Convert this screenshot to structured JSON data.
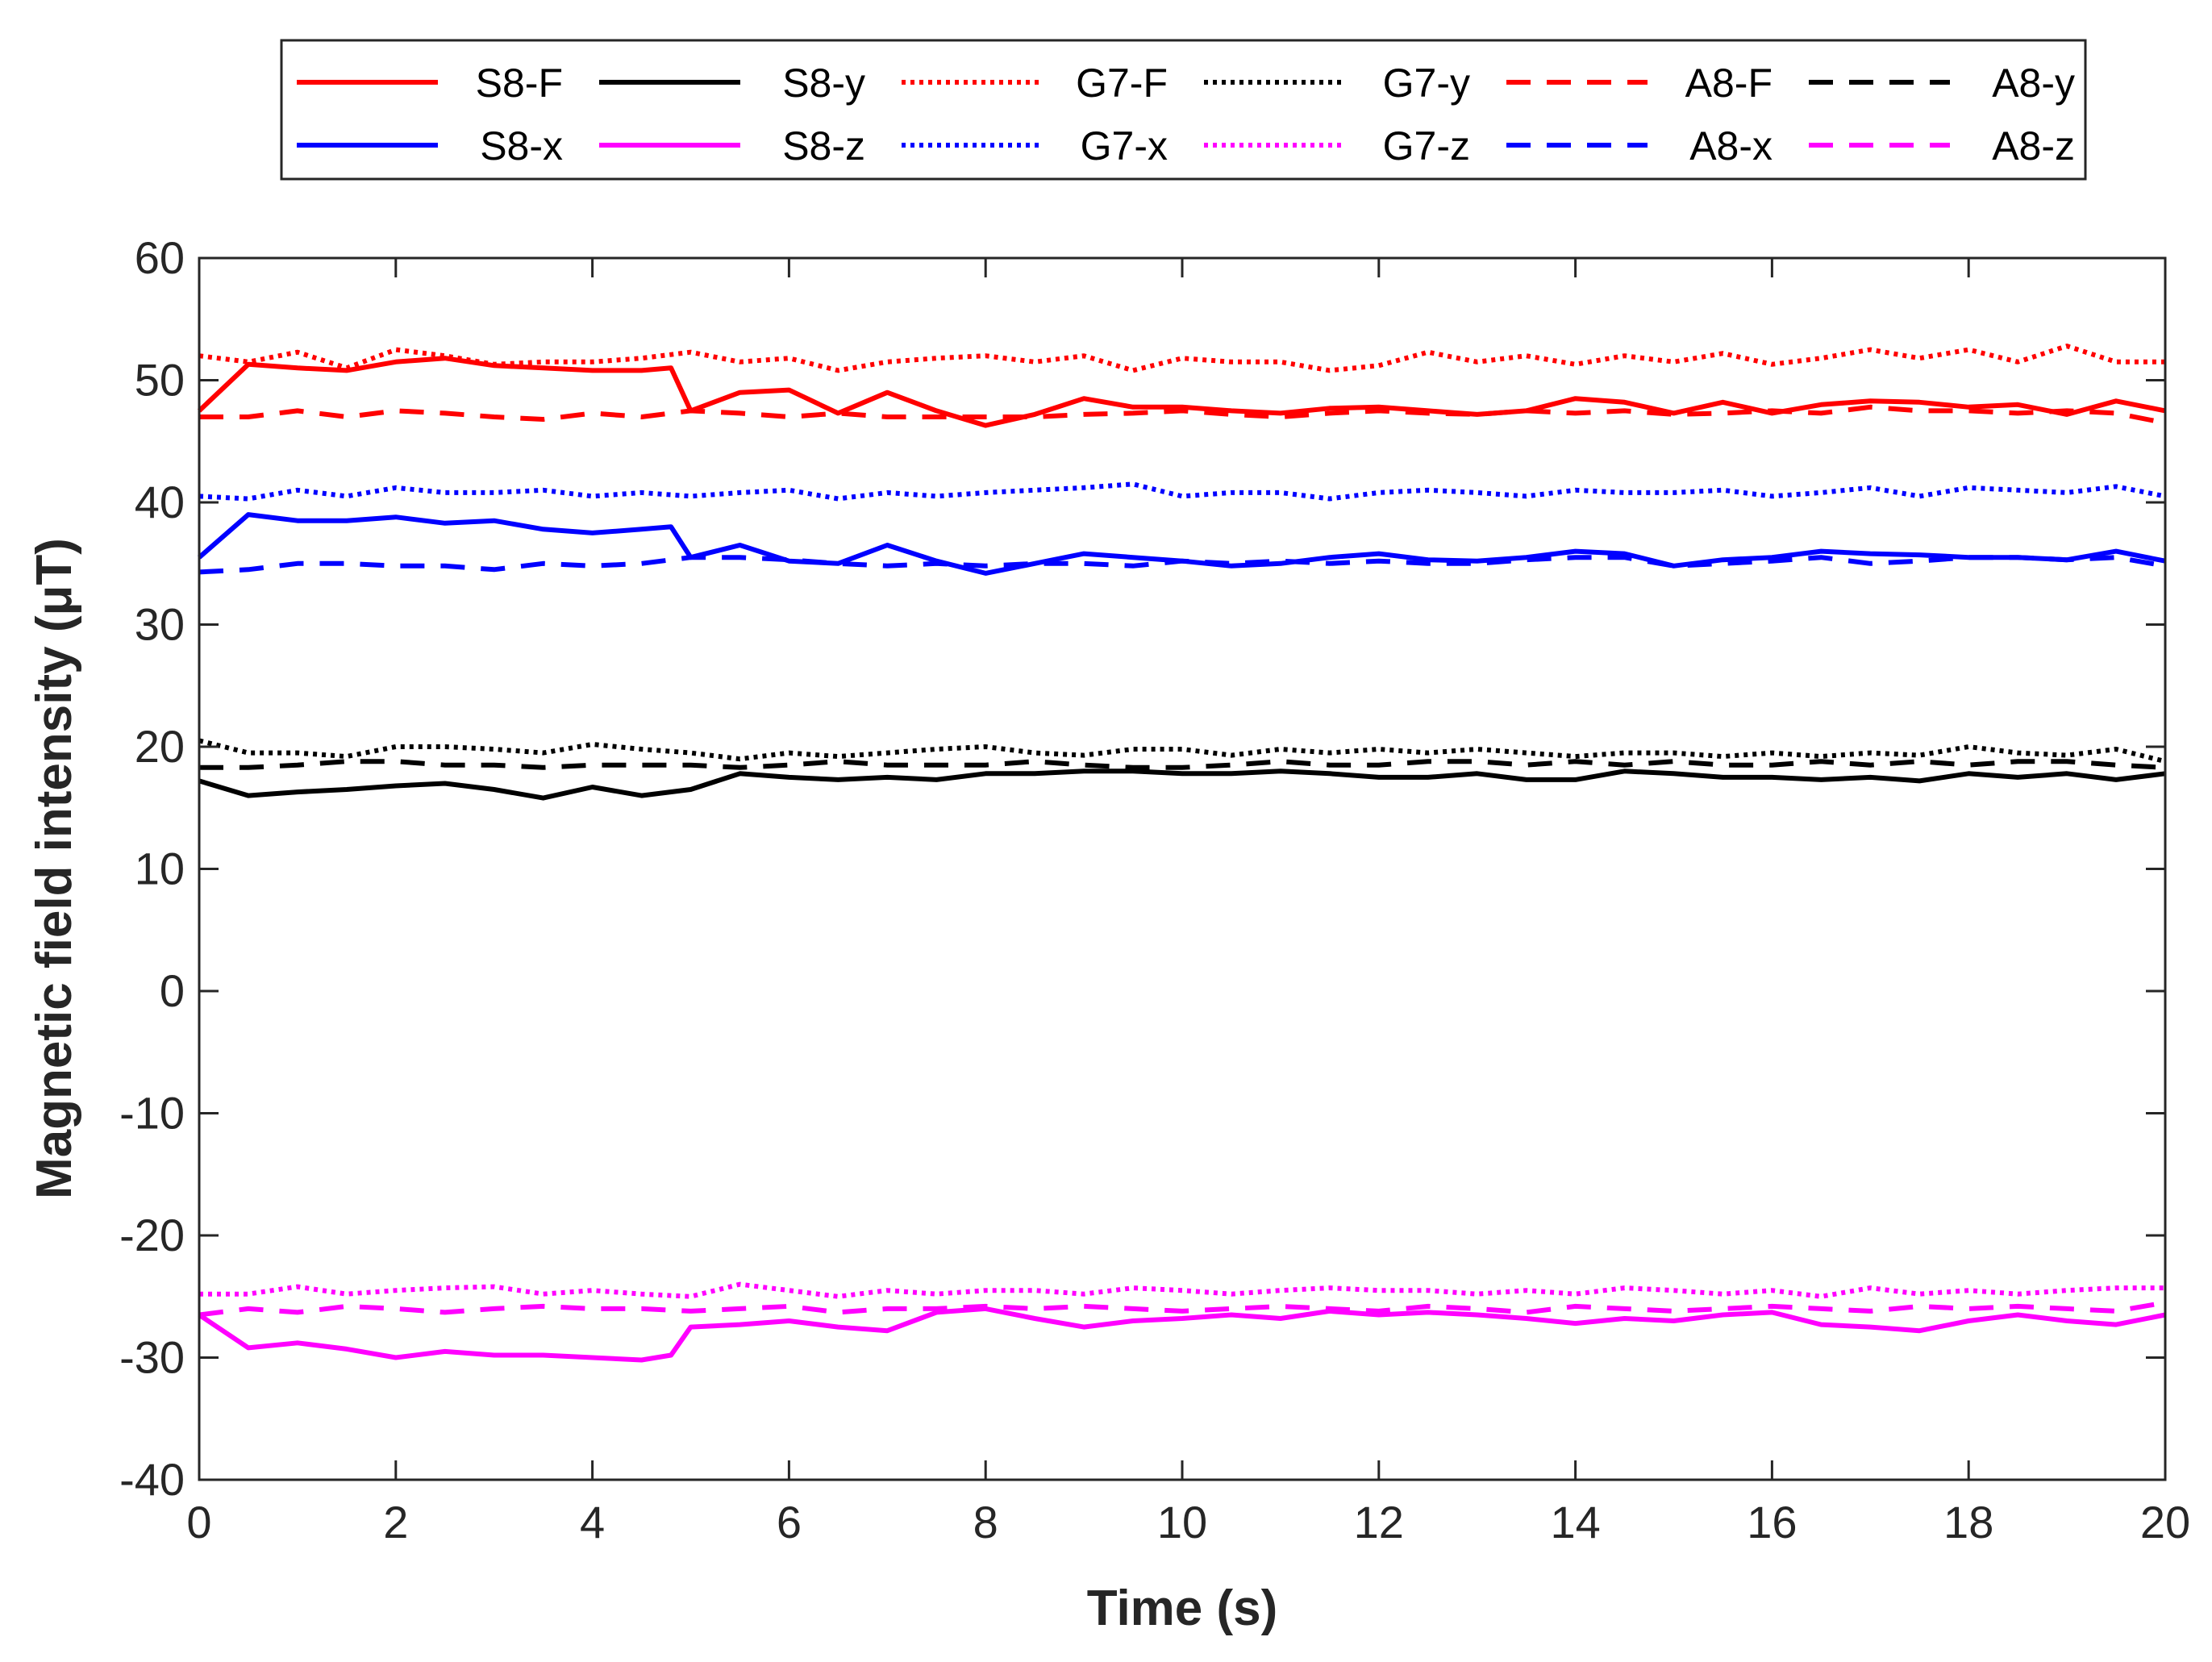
{
  "chart_data": {
    "type": "line",
    "title": "",
    "xlabel": "Time (s)",
    "ylabel": "Magnetic field intensity (μT)",
    "xlim": [
      0,
      20
    ],
    "ylim": [
      -40,
      60
    ],
    "xticks": [
      "0",
      "2",
      "4",
      "6",
      "8",
      "10",
      "12",
      "14",
      "16",
      "18",
      "20"
    ],
    "yticks": [
      "-40",
      "-30",
      "-20",
      "-10",
      "0",
      "10",
      "20",
      "30",
      "40",
      "50",
      "60"
    ],
    "grid": false,
    "legend_position": "top",
    "series": [
      {
        "name": "S8-F",
        "color": "#ff0000",
        "style": "solid",
        "x": [
          0,
          0.5,
          1,
          1.5,
          2,
          2.5,
          3,
          3.5,
          4,
          4.5,
          4.8,
          5,
          5.5,
          6,
          6.5,
          7,
          7.5,
          8,
          8.5,
          9,
          9.5,
          10,
          10.5,
          11,
          11.5,
          12,
          12.5,
          13,
          13.5,
          14,
          14.5,
          15,
          15.5,
          16,
          16.5,
          17,
          17.5,
          18,
          18.5,
          19,
          19.5,
          20
        ],
        "y": [
          47.5,
          51.3,
          51,
          50.8,
          51.5,
          51.8,
          51.2,
          51,
          50.8,
          50.8,
          51,
          47.5,
          49,
          49.2,
          47.3,
          49,
          47.5,
          46.3,
          47.2,
          48.5,
          47.8,
          47.8,
          47.5,
          47.3,
          47.7,
          47.8,
          47.5,
          47.2,
          47.5,
          48.5,
          48.2,
          47.3,
          48.2,
          47.3,
          48,
          48.3,
          48.2,
          47.8,
          48,
          47.2,
          48.3,
          47.5
        ]
      },
      {
        "name": "S8-x",
        "color": "#0000ff",
        "style": "solid",
        "x": [
          0,
          0.5,
          1,
          1.5,
          2,
          2.5,
          3,
          3.5,
          4,
          4.5,
          4.8,
          5,
          5.5,
          6,
          6.5,
          7,
          7.5,
          8,
          8.5,
          9,
          9.5,
          10,
          10.5,
          11,
          11.5,
          12,
          12.5,
          13,
          13.5,
          14,
          14.5,
          15,
          15.5,
          16,
          16.5,
          17,
          17.5,
          18,
          18.5,
          19,
          19.5,
          20
        ],
        "y": [
          35.5,
          39,
          38.5,
          38.5,
          38.8,
          38.3,
          38.5,
          37.8,
          37.5,
          37.8,
          38,
          35.5,
          36.5,
          35.2,
          35,
          36.5,
          35.2,
          34.2,
          35,
          35.8,
          35.5,
          35.2,
          34.8,
          35,
          35.5,
          35.8,
          35.3,
          35.2,
          35.5,
          36,
          35.8,
          34.8,
          35.3,
          35.5,
          36,
          35.8,
          35.7,
          35.5,
          35.5,
          35.3,
          36,
          35.2
        ]
      },
      {
        "name": "S8-y",
        "color": "#000000",
        "style": "solid",
        "x": [
          0,
          0.5,
          1,
          1.5,
          2,
          2.5,
          3,
          3.5,
          4,
          4.5,
          5,
          5.5,
          6,
          6.5,
          7,
          7.5,
          8,
          8.5,
          9,
          9.5,
          10,
          10.5,
          11,
          11.5,
          12,
          12.5,
          13,
          13.5,
          14,
          14.5,
          15,
          15.5,
          16,
          16.5,
          17,
          17.5,
          18,
          18.5,
          19,
          19.5,
          20
        ],
        "y": [
          17.2,
          16,
          16.3,
          16.5,
          16.8,
          17,
          16.5,
          15.8,
          16.7,
          16,
          16.5,
          17.8,
          17.5,
          17.3,
          17.5,
          17.3,
          17.8,
          17.8,
          18,
          18,
          17.8,
          17.8,
          18,
          17.8,
          17.5,
          17.5,
          17.8,
          17.3,
          17.3,
          18,
          17.8,
          17.5,
          17.5,
          17.3,
          17.5,
          17.2,
          17.8,
          17.5,
          17.8,
          17.3,
          17.8
        ]
      },
      {
        "name": "S8-z",
        "color": "#ff00ff",
        "style": "solid",
        "x": [
          0,
          0.5,
          1,
          1.5,
          2,
          2.5,
          3,
          3.5,
          4,
          4.5,
          4.8,
          5,
          5.5,
          6,
          6.5,
          7,
          7.5,
          8,
          8.5,
          9,
          9.5,
          10,
          10.5,
          11,
          11.5,
          12,
          12.5,
          13,
          13.5,
          14,
          14.5,
          15,
          15.5,
          16,
          16.5,
          17,
          17.5,
          18,
          18.5,
          19,
          19.5,
          20
        ],
        "y": [
          -26.5,
          -29.2,
          -28.8,
          -29.3,
          -30,
          -29.5,
          -29.8,
          -29.8,
          -30,
          -30.2,
          -29.8,
          -27.5,
          -27.3,
          -27,
          -27.5,
          -27.8,
          -26.3,
          -26,
          -26.8,
          -27.5,
          -27,
          -26.8,
          -26.5,
          -26.8,
          -26.2,
          -26.5,
          -26.3,
          -26.5,
          -26.8,
          -27.2,
          -26.8,
          -27,
          -26.5,
          -26.3,
          -27.3,
          -27.5,
          -27.8,
          -27,
          -26.5,
          -27,
          -27.3,
          -26.5
        ]
      },
      {
        "name": "G7-F",
        "color": "#ff0000",
        "style": "dotted",
        "x": [
          0,
          0.5,
          1,
          1.5,
          2,
          2.5,
          3,
          3.5,
          4,
          4.5,
          5,
          5.5,
          6,
          6.5,
          7,
          7.5,
          8,
          8.5,
          9,
          9.5,
          10,
          10.5,
          11,
          11.5,
          12,
          12.5,
          13,
          13.5,
          14,
          14.5,
          15,
          15.5,
          16,
          16.5,
          17,
          17.5,
          18,
          18.5,
          19,
          19.5,
          20
        ],
        "y": [
          52,
          51.5,
          52.3,
          51,
          52.5,
          52,
          51.3,
          51.5,
          51.5,
          51.8,
          52.3,
          51.5,
          51.8,
          50.8,
          51.5,
          51.8,
          52,
          51.5,
          52,
          50.8,
          51.8,
          51.5,
          51.5,
          50.8,
          51.2,
          52.3,
          51.5,
          52,
          51.3,
          52,
          51.5,
          52.2,
          51.3,
          51.8,
          52.5,
          51.8,
          52.5,
          51.5,
          52.8,
          51.5,
          51.5
        ]
      },
      {
        "name": "G7-x",
        "color": "#0000ff",
        "style": "dotted",
        "x": [
          0,
          0.5,
          1,
          1.5,
          2,
          2.5,
          3,
          3.5,
          4,
          4.5,
          5,
          5.5,
          6,
          6.5,
          7,
          7.5,
          8,
          8.5,
          9,
          9.5,
          10,
          10.5,
          11,
          11.5,
          12,
          12.5,
          13,
          13.5,
          14,
          14.5,
          15,
          15.5,
          16,
          16.5,
          17,
          17.5,
          18,
          18.5,
          19,
          19.5,
          20
        ],
        "y": [
          40.5,
          40.3,
          41,
          40.5,
          41.2,
          40.8,
          40.8,
          41,
          40.5,
          40.8,
          40.5,
          40.8,
          41,
          40.3,
          40.8,
          40.5,
          40.8,
          41,
          41.2,
          41.5,
          40.5,
          40.8,
          40.8,
          40.3,
          40.8,
          41,
          40.8,
          40.5,
          41,
          40.8,
          40.8,
          41,
          40.5,
          40.8,
          41.2,
          40.5,
          41.2,
          41,
          40.8,
          41.3,
          40.5
        ]
      },
      {
        "name": "G7-y",
        "color": "#000000",
        "style": "dotted",
        "x": [
          0,
          0.5,
          1,
          1.5,
          2,
          2.5,
          3,
          3.5,
          4,
          4.5,
          5,
          5.5,
          6,
          6.5,
          7,
          7.5,
          8,
          8.5,
          9,
          9.5,
          10,
          10.5,
          11,
          11.5,
          12,
          12.5,
          13,
          13.5,
          14,
          14.5,
          15,
          15.5,
          16,
          16.5,
          17,
          17.5,
          18,
          18.5,
          19,
          19.5,
          20
        ],
        "y": [
          20.5,
          19.5,
          19.5,
          19.2,
          20,
          20,
          19.8,
          19.5,
          20.2,
          19.8,
          19.5,
          19,
          19.5,
          19.2,
          19.5,
          19.8,
          20,
          19.5,
          19.3,
          19.8,
          19.8,
          19.3,
          19.8,
          19.5,
          19.8,
          19.5,
          19.8,
          19.5,
          19.2,
          19.5,
          19.5,
          19.2,
          19.5,
          19.2,
          19.5,
          19.3,
          20,
          19.5,
          19.3,
          19.8,
          18.8
        ]
      },
      {
        "name": "G7-z",
        "color": "#ff00ff",
        "style": "dotted",
        "x": [
          0,
          0.5,
          1,
          1.5,
          2,
          2.5,
          3,
          3.5,
          4,
          4.5,
          5,
          5.5,
          6,
          6.5,
          7,
          7.5,
          8,
          8.5,
          9,
          9.5,
          10,
          10.5,
          11,
          11.5,
          12,
          12.5,
          13,
          13.5,
          14,
          14.5,
          15,
          15.5,
          16,
          16.5,
          17,
          17.5,
          18,
          18.5,
          19,
          19.5,
          20
        ],
        "y": [
          -24.8,
          -24.8,
          -24.2,
          -24.8,
          -24.5,
          -24.3,
          -24.2,
          -24.8,
          -24.5,
          -24.8,
          -25,
          -24,
          -24.5,
          -25,
          -24.5,
          -24.8,
          -24.5,
          -24.5,
          -24.8,
          -24.3,
          -24.5,
          -24.8,
          -24.5,
          -24.3,
          -24.5,
          -24.5,
          -24.8,
          -24.5,
          -24.8,
          -24.3,
          -24.5,
          -24.8,
          -24.5,
          -25,
          -24.3,
          -24.8,
          -24.5,
          -24.8,
          -24.5,
          -24.3,
          -24.3
        ]
      },
      {
        "name": "A8-F",
        "color": "#ff0000",
        "style": "dashed",
        "x": [
          0,
          0.5,
          1,
          1.5,
          2,
          2.5,
          3,
          3.5,
          4,
          4.5,
          5,
          5.5,
          6,
          6.5,
          7,
          7.5,
          8,
          8.5,
          9,
          9.5,
          10,
          10.5,
          11,
          11.5,
          12,
          12.5,
          13,
          13.5,
          14,
          14.5,
          15,
          15.5,
          16,
          16.5,
          17,
          17.5,
          18,
          18.5,
          19,
          19.5,
          20
        ],
        "y": [
          47,
          47,
          47.5,
          47,
          47.5,
          47.3,
          47,
          46.8,
          47.3,
          47,
          47.5,
          47.3,
          47,
          47.3,
          47,
          47,
          47,
          47,
          47.2,
          47.3,
          47.5,
          47.2,
          47,
          47.3,
          47.5,
          47.3,
          47.2,
          47.5,
          47.3,
          47.5,
          47.2,
          47.3,
          47.5,
          47.3,
          47.8,
          47.5,
          47.5,
          47.3,
          47.5,
          47.3,
          46.5
        ]
      },
      {
        "name": "A8-x",
        "color": "#0000ff",
        "style": "dashed",
        "x": [
          0,
          0.5,
          1,
          1.5,
          2,
          2.5,
          3,
          3.5,
          4,
          4.5,
          5,
          5.5,
          6,
          6.5,
          7,
          7.5,
          8,
          8.5,
          9,
          9.5,
          10,
          10.5,
          11,
          11.5,
          12,
          12.5,
          13,
          13.5,
          14,
          14.5,
          15,
          15.5,
          16,
          16.5,
          17,
          17.5,
          18,
          18.5,
          19,
          19.5,
          20
        ],
        "y": [
          34.3,
          34.5,
          35,
          35,
          34.8,
          34.8,
          34.5,
          35,
          34.8,
          35,
          35.5,
          35.5,
          35.3,
          35,
          34.8,
          35,
          34.8,
          35,
          35,
          34.8,
          35.2,
          35,
          35.2,
          35,
          35.2,
          35,
          35,
          35.3,
          35.5,
          35.5,
          34.8,
          35,
          35.2,
          35.5,
          35,
          35.2,
          35.5,
          35.5,
          35.3,
          35.5,
          34.8
        ]
      },
      {
        "name": "A8-y",
        "color": "#000000",
        "style": "dashed",
        "x": [
          0,
          0.5,
          1,
          1.5,
          2,
          2.5,
          3,
          3.5,
          4,
          4.5,
          5,
          5.5,
          6,
          6.5,
          7,
          7.5,
          8,
          8.5,
          9,
          9.5,
          10,
          10.5,
          11,
          11.5,
          12,
          12.5,
          13,
          13.5,
          14,
          14.5,
          15,
          15.5,
          16,
          16.5,
          17,
          17.5,
          18,
          18.5,
          19,
          19.5,
          20
        ],
        "y": [
          18.3,
          18.3,
          18.5,
          18.8,
          18.8,
          18.5,
          18.5,
          18.3,
          18.5,
          18.5,
          18.5,
          18.3,
          18.5,
          18.8,
          18.5,
          18.5,
          18.5,
          18.8,
          18.5,
          18.3,
          18.3,
          18.5,
          18.8,
          18.5,
          18.5,
          18.8,
          18.8,
          18.5,
          18.8,
          18.5,
          18.8,
          18.5,
          18.5,
          18.8,
          18.5,
          18.8,
          18.5,
          18.8,
          18.8,
          18.5,
          18.3
        ]
      },
      {
        "name": "A8-z",
        "color": "#ff00ff",
        "style": "dashed",
        "x": [
          0,
          0.5,
          1,
          1.5,
          2,
          2.5,
          3,
          3.5,
          4,
          4.5,
          5,
          5.5,
          6,
          6.5,
          7,
          7.5,
          8,
          8.5,
          9,
          9.5,
          10,
          10.5,
          11,
          11.5,
          12,
          12.5,
          13,
          13.5,
          14,
          14.5,
          15,
          15.5,
          16,
          16.5,
          17,
          17.5,
          18,
          18.5,
          19,
          19.5,
          20
        ],
        "y": [
          -26.5,
          -26,
          -26.3,
          -25.8,
          -26,
          -26.3,
          -26,
          -25.8,
          -26,
          -26,
          -26.2,
          -26,
          -25.8,
          -26.3,
          -26,
          -26,
          -25.8,
          -26,
          -25.8,
          -26,
          -26.2,
          -26,
          -25.8,
          -26,
          -26.2,
          -25.8,
          -26,
          -26.3,
          -25.8,
          -26,
          -26.2,
          -26,
          -25.8,
          -26,
          -26.2,
          -25.8,
          -26,
          -25.8,
          -26,
          -26.2,
          -25.5
        ]
      }
    ]
  }
}
